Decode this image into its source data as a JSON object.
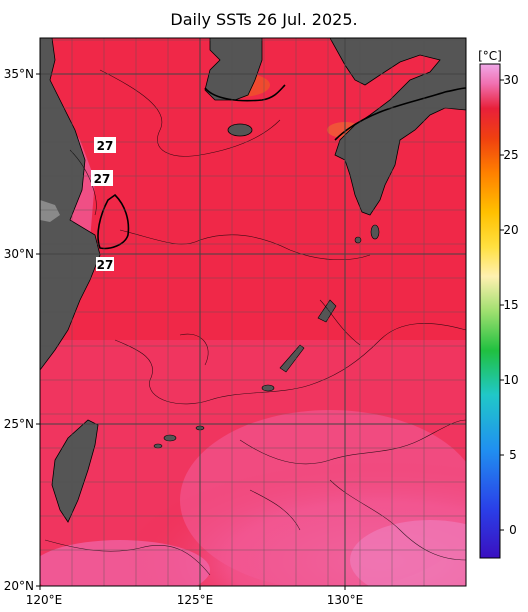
{
  "title": "Daily SSTs 26 Jul. 2025.",
  "lon_axis": {
    "ticks": [
      "120°E",
      "125°E",
      "130°E"
    ]
  },
  "lat_axis": {
    "ticks": [
      "20°N",
      "25°N",
      "30°N",
      "35°N"
    ]
  },
  "colorbar": {
    "unit": "[°C]",
    "ticks": [
      "0",
      "5",
      "10",
      "15",
      "20",
      "25",
      "30"
    ]
  },
  "contour_labels": [
    "27",
    "27",
    "27"
  ],
  "colors": {
    "sea_main": "#f02848",
    "sea_warm": "#f2508e",
    "land": "#555555",
    "grid": "#555555"
  }
}
